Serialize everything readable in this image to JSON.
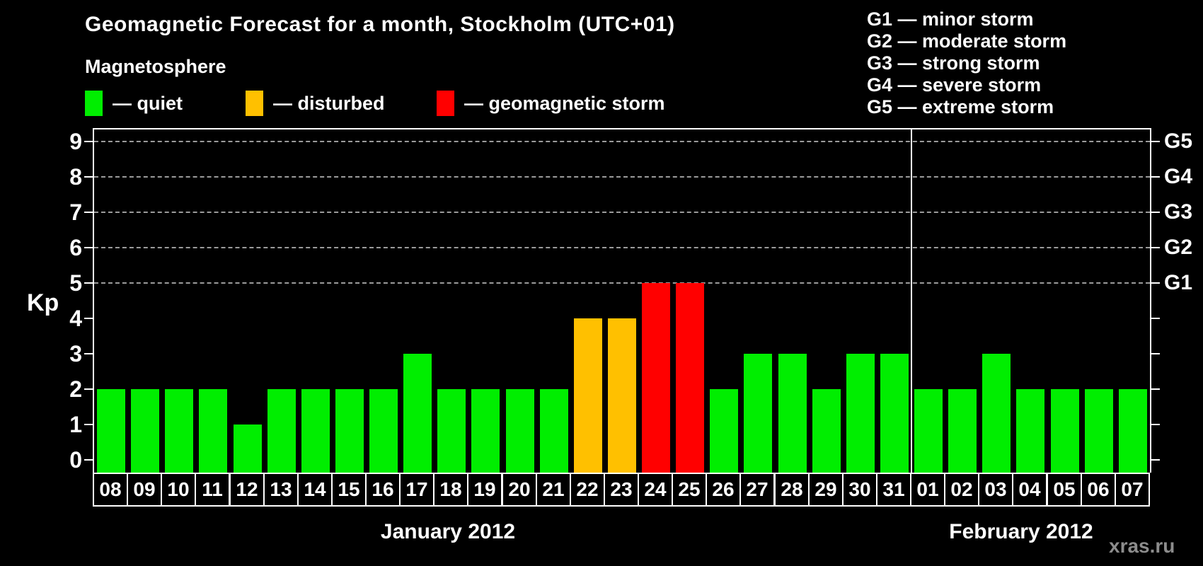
{
  "title": "Geomagnetic Forecast for a month, Stockholm (UTC+01)",
  "magnetosphere": {
    "heading": "Magnetosphere",
    "legend": [
      {
        "name": "quiet",
        "label": "— quiet",
        "color": "#00EE00"
      },
      {
        "name": "disturbed",
        "label": "— disturbed",
        "color": "#FFC000"
      },
      {
        "name": "storm",
        "label": "— geomagnetic storm",
        "color": "#FF0000"
      }
    ]
  },
  "g_scale_legend": [
    "G1 — minor storm",
    "G2 — moderate storm",
    "G3 — strong storm",
    "G4 — severe storm",
    "G5 — extreme storm"
  ],
  "watermark": "xras.ru",
  "colors": {
    "background": "#000000",
    "axis": "#FFFFFF",
    "grid": "#9B9B9B",
    "text": "#FFFFFF",
    "watermark_text": "#8C8C8C"
  },
  "chart_data": {
    "type": "bar",
    "title": "Geomagnetic Forecast for a month, Stockholm (UTC+01)",
    "ylabel": "Kp",
    "ylim": [
      0,
      9.4
    ],
    "yticks": [
      0,
      1,
      2,
      3,
      4,
      5,
      6,
      7,
      8,
      9
    ],
    "gridlines_at": [
      5,
      6,
      7,
      8,
      9
    ],
    "grid": "dashed horizontal at Kp 5-9",
    "legend_position": "top-left",
    "right_axis": [
      {
        "label": "G1",
        "kp": 5
      },
      {
        "label": "G2",
        "kp": 6
      },
      {
        "label": "G3",
        "kp": 7
      },
      {
        "label": "G4",
        "kp": 8
      },
      {
        "label": "G5",
        "kp": 9
      }
    ],
    "state_colors": {
      "quiet": "#00EE00",
      "disturbed": "#FFC000",
      "storm": "#FF0000"
    },
    "months": [
      {
        "label": "January 2012",
        "days": [
          {
            "day": "08",
            "kp": 2,
            "state": "quiet"
          },
          {
            "day": "09",
            "kp": 2,
            "state": "quiet"
          },
          {
            "day": "10",
            "kp": 2,
            "state": "quiet"
          },
          {
            "day": "11",
            "kp": 2,
            "state": "quiet"
          },
          {
            "day": "12",
            "kp": 1,
            "state": "quiet"
          },
          {
            "day": "13",
            "kp": 2,
            "state": "quiet"
          },
          {
            "day": "14",
            "kp": 2,
            "state": "quiet"
          },
          {
            "day": "15",
            "kp": 2,
            "state": "quiet"
          },
          {
            "day": "16",
            "kp": 2,
            "state": "quiet"
          },
          {
            "day": "17",
            "kp": 3,
            "state": "quiet"
          },
          {
            "day": "18",
            "kp": 2,
            "state": "quiet"
          },
          {
            "day": "19",
            "kp": 2,
            "state": "quiet"
          },
          {
            "day": "20",
            "kp": 2,
            "state": "quiet"
          },
          {
            "day": "21",
            "kp": 2,
            "state": "quiet"
          },
          {
            "day": "22",
            "kp": 4,
            "state": "disturbed"
          },
          {
            "day": "23",
            "kp": 4,
            "state": "disturbed"
          },
          {
            "day": "24",
            "kp": 5,
            "state": "storm"
          },
          {
            "day": "25",
            "kp": 5,
            "state": "storm"
          },
          {
            "day": "26",
            "kp": 2,
            "state": "quiet"
          },
          {
            "day": "27",
            "kp": 3,
            "state": "quiet"
          },
          {
            "day": "28",
            "kp": 3,
            "state": "quiet"
          },
          {
            "day": "29",
            "kp": 2,
            "state": "quiet"
          },
          {
            "day": "30",
            "kp": 3,
            "state": "quiet"
          },
          {
            "day": "31",
            "kp": 3,
            "state": "quiet"
          }
        ]
      },
      {
        "label": "February 2012",
        "days": [
          {
            "day": "01",
            "kp": 2,
            "state": "quiet"
          },
          {
            "day": "02",
            "kp": 2,
            "state": "quiet"
          },
          {
            "day": "03",
            "kp": 3,
            "state": "quiet"
          },
          {
            "day": "04",
            "kp": 2,
            "state": "quiet"
          },
          {
            "day": "05",
            "kp": 2,
            "state": "quiet"
          },
          {
            "day": "06",
            "kp": 2,
            "state": "quiet"
          },
          {
            "day": "07",
            "kp": 2,
            "state": "quiet"
          }
        ]
      }
    ]
  }
}
